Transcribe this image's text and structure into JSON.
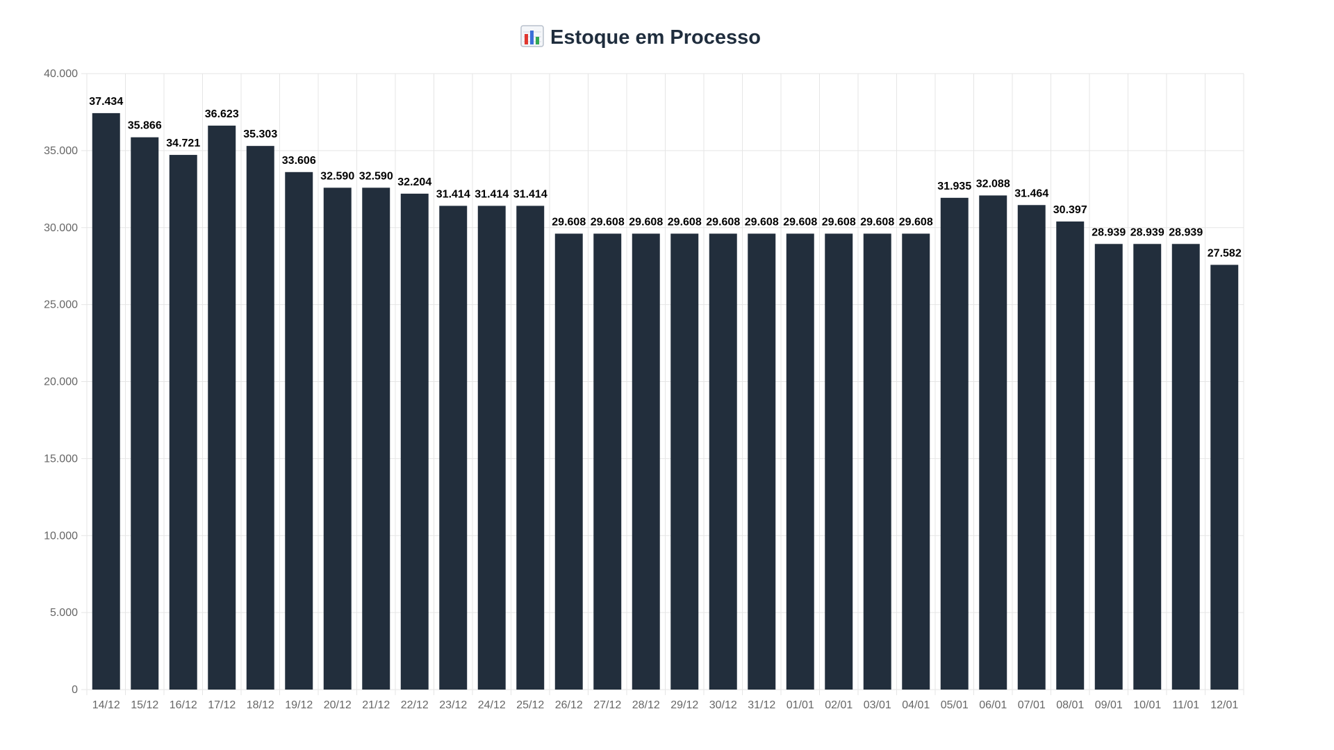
{
  "chart_data": {
    "type": "bar",
    "title": "Estoque em Processo",
    "title_icon": "bar-chart-icon",
    "xlabel": "",
    "ylabel": "",
    "categories": [
      "14/12",
      "15/12",
      "16/12",
      "17/12",
      "18/12",
      "19/12",
      "20/12",
      "21/12",
      "22/12",
      "23/12",
      "24/12",
      "25/12",
      "26/12",
      "27/12",
      "28/12",
      "29/12",
      "30/12",
      "31/12",
      "01/01",
      "02/01",
      "03/01",
      "04/01",
      "05/01",
      "06/01",
      "07/01",
      "08/01",
      "09/01",
      "10/01",
      "11/01",
      "12/01"
    ],
    "values": [
      37434,
      35866,
      34721,
      36623,
      35303,
      33606,
      32590,
      32590,
      32204,
      31414,
      31414,
      31414,
      29608,
      29608,
      29608,
      29608,
      29608,
      29608,
      29608,
      29608,
      29608,
      29608,
      31935,
      32088,
      31464,
      30397,
      28939,
      28939,
      28939,
      27582
    ],
    "value_labels": [
      "37.434",
      "35.866",
      "34.721",
      "36.623",
      "35.303",
      "33.606",
      "32.590",
      "32.590",
      "32.204",
      "31.414",
      "31.414",
      "31.414",
      "29.608",
      "29.608",
      "29.608",
      "29.608",
      "29.608",
      "29.608",
      "29.608",
      "29.608",
      "29.608",
      "29.608",
      "31.935",
      "32.088",
      "31.464",
      "30.397",
      "28.939",
      "28.939",
      "28.939",
      "27.582"
    ],
    "ylim": [
      0,
      40000
    ],
    "y_ticks": [
      0,
      5000,
      10000,
      15000,
      20000,
      25000,
      30000,
      35000,
      40000
    ],
    "y_tick_labels": [
      "0",
      "5.000",
      "10.000",
      "15.000",
      "20.000",
      "25.000",
      "30.000",
      "35.000",
      "40.000"
    ],
    "grid": true,
    "bar_color": "#222e3c",
    "grid_color": "#e5e5e5",
    "title_color": "#1f2d3d"
  }
}
